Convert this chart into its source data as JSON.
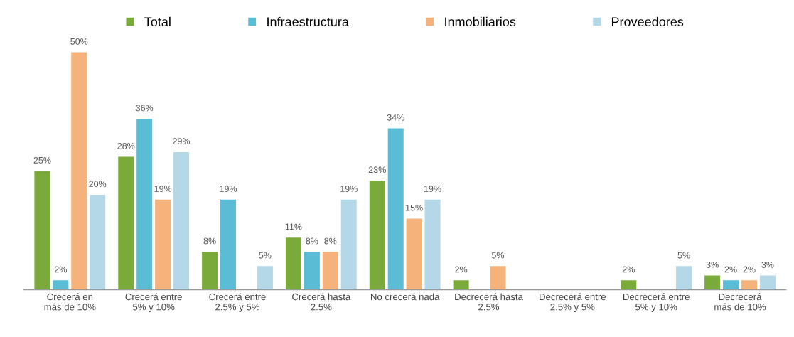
{
  "chart_data": {
    "type": "bar",
    "categories": [
      "Crecerá en\nmás de 10%",
      "Crecerá entre\n5% y 10%",
      "Crecerá entre\n2.5% y 5%",
      "Crecerá hasta\n2.5%",
      "No crecerá nada",
      "Decrecerá hasta\n2.5%",
      "Decrecerá entre\n2.5% y 5%",
      "Decrecerá entre\n5% y 10%",
      "Decrecerá\nmás de 10%"
    ],
    "series": [
      {
        "name": "Total",
        "color": "#7aab3a",
        "values": [
          25,
          28,
          8,
          11,
          23,
          2,
          null,
          2,
          3
        ],
        "value_labels": [
          "25%",
          "28%",
          "8%",
          "11%",
          "23%",
          "2%",
          null,
          "2%",
          "3%"
        ]
      },
      {
        "name": "Infraestructura",
        "color": "#5bbcd6",
        "values": [
          2,
          36,
          19,
          8,
          34,
          null,
          null,
          null,
          2
        ],
        "value_labels": [
          "2%",
          "36%",
          "19%",
          "8%",
          "34%",
          null,
          null,
          null,
          "2%"
        ]
      },
      {
        "name": "Inmobiliarios",
        "color": "#f5b27a",
        "values": [
          50,
          19,
          null,
          8,
          15,
          5,
          null,
          null,
          2
        ],
        "value_labels": [
          "50%",
          "19%",
          null,
          "8%",
          "15%",
          "5%",
          null,
          null,
          "2%"
        ]
      },
      {
        "name": "Proveedores",
        "color": "#b5d8e8",
        "values": [
          20,
          29,
          5,
          19,
          19,
          null,
          null,
          5,
          3
        ],
        "value_labels": [
          "20%",
          "29%",
          "5%",
          "19%",
          "19%",
          null,
          null,
          "5%",
          "3%"
        ]
      }
    ],
    "legend": "top",
    "grid": false
  }
}
